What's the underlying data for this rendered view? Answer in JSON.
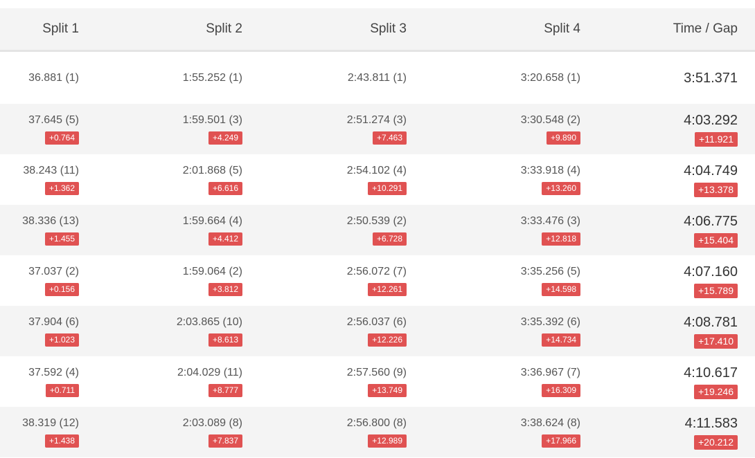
{
  "columns": [
    "Split 1",
    "Split 2",
    "Split 3",
    "Split 4",
    "Time / Gap"
  ],
  "accent_color": "#e05252",
  "rows": [
    {
      "s1": "36.881 (1)",
      "s2": "1:55.252 (1)",
      "s3": "2:43.811 (1)",
      "s4": "3:20.658 (1)",
      "time": "3:51.371",
      "g1": "",
      "g2": "",
      "g3": "",
      "g4": "",
      "gap": ""
    },
    {
      "s1": "37.645 (5)",
      "s2": "1:59.501 (3)",
      "s3": "2:51.274 (3)",
      "s4": "3:30.548 (2)",
      "time": "4:03.292",
      "g1": "+0.764",
      "g2": "+4.249",
      "g3": "+7.463",
      "g4": "+9.890",
      "gap": "+11.921"
    },
    {
      "s1": "38.243 (11)",
      "s2": "2:01.868 (5)",
      "s3": "2:54.102 (4)",
      "s4": "3:33.918 (4)",
      "time": "4:04.749",
      "g1": "+1.362",
      "g2": "+6.616",
      "g3": "+10.291",
      "g4": "+13.260",
      "gap": "+13.378"
    },
    {
      "s1": "38.336 (13)",
      "s2": "1:59.664 (4)",
      "s3": "2:50.539 (2)",
      "s4": "3:33.476 (3)",
      "time": "4:06.775",
      "g1": "+1.455",
      "g2": "+4.412",
      "g3": "+6.728",
      "g4": "+12.818",
      "gap": "+15.404"
    },
    {
      "s1": "37.037 (2)",
      "s2": "1:59.064 (2)",
      "s3": "2:56.072 (7)",
      "s4": "3:35.256 (5)",
      "time": "4:07.160",
      "g1": "+0.156",
      "g2": "+3.812",
      "g3": "+12.261",
      "g4": "+14.598",
      "gap": "+15.789"
    },
    {
      "s1": "37.904 (6)",
      "s2": "2:03.865 (10)",
      "s3": "2:56.037 (6)",
      "s4": "3:35.392 (6)",
      "time": "4:08.781",
      "g1": "+1.023",
      "g2": "+8.613",
      "g3": "+12.226",
      "g4": "+14.734",
      "gap": "+17.410"
    },
    {
      "s1": "37.592 (4)",
      "s2": "2:04.029 (11)",
      "s3": "2:57.560 (9)",
      "s4": "3:36.967 (7)",
      "time": "4:10.617",
      "g1": "+0.711",
      "g2": "+8.777",
      "g3": "+13.749",
      "g4": "+16.309",
      "gap": "+19.246"
    },
    {
      "s1": "38.319 (12)",
      "s2": "2:03.089 (8)",
      "s3": "2:56.800 (8)",
      "s4": "3:38.624 (8)",
      "time": "4:11.583",
      "g1": "+1.438",
      "g2": "+7.837",
      "g3": "+12.989",
      "g4": "+17.966",
      "gap": "+20.212"
    }
  ]
}
